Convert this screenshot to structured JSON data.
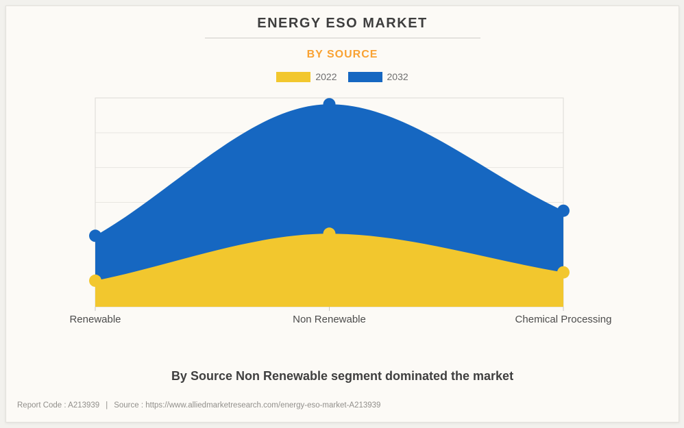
{
  "window": {
    "background": "#F2F1ED",
    "card_background": "#FCFAF6",
    "card_border": "#E3E1DC"
  },
  "header": {
    "title": "ENERGY ESO MARKET",
    "title_color": "#3E3E3E",
    "subtitle": "BY SOURCE",
    "subtitle_color": "#F9A233"
  },
  "legend": {
    "items": [
      {
        "label": "2022",
        "color": "#F2C72E"
      },
      {
        "label": "2032",
        "color": "#1667C1"
      }
    ]
  },
  "chart_data": {
    "type": "area",
    "title": "ENERGY ESO MARKET",
    "subtitle": "BY SOURCE",
    "categories": [
      "Renewable",
      "Non Renewable",
      "Chemical Processing"
    ],
    "series": [
      {
        "name": "2022",
        "color": "#F2C72E",
        "values": [
          12.5,
          35,
          16.5
        ]
      },
      {
        "name": "2032",
        "color": "#1667C1",
        "values": [
          34,
          97,
          46
        ]
      }
    ],
    "xlabel": "",
    "ylabel": "",
    "ylim": [
      0,
      100
    ],
    "y_axis_labels_visible": false,
    "grid": true,
    "gridline_count": 6,
    "curve": "monotone",
    "markers": true,
    "legend_position": "top",
    "axis_label_color": "#4C4C4C",
    "gridline_color": "#E8E6E1",
    "plot_border_color": "#DDDBD6"
  },
  "caption": {
    "text": "By Source Non Renewable segment dominated the market"
  },
  "footer": {
    "report_code": "Report Code : A213939",
    "separator": "|",
    "source": "Source : https://www.alliedmarketresearch.com/energy-eso-market-A213939"
  }
}
